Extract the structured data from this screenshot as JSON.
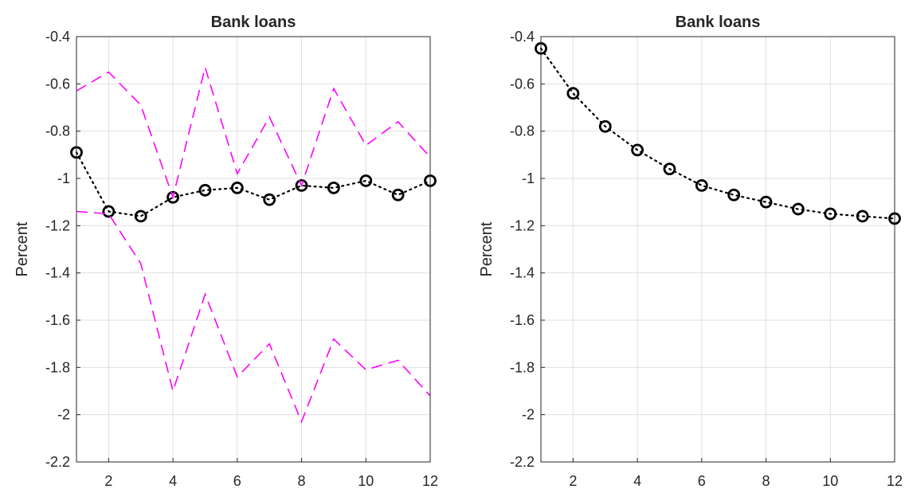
{
  "chart_data": [
    {
      "type": "line",
      "title": "Bank loans",
      "xlabel": "",
      "ylabel": "Percent",
      "xlim": [
        1,
        12
      ],
      "ylim": [
        -2.2,
        -0.4
      ],
      "xticks": [
        2,
        4,
        6,
        8,
        10,
        12
      ],
      "yticks": [
        -2.2,
        -2,
        -1.8,
        -1.6,
        -1.4,
        -1.2,
        -1,
        -0.8,
        -0.6,
        -0.4
      ],
      "grid": true,
      "x": [
        1,
        2,
        3,
        4,
        5,
        6,
        7,
        8,
        9,
        10,
        11,
        12
      ],
      "series": [
        {
          "role": "estimate",
          "style": "dotted-circles",
          "color": "#000000",
          "values": [
            -0.89,
            -1.14,
            -1.16,
            -1.08,
            -1.05,
            -1.04,
            -1.09,
            -1.03,
            -1.04,
            -1.01,
            -1.07,
            -1.01
          ]
        },
        {
          "role": "upper-band",
          "style": "dashed",
          "color": "#ff00ff",
          "values": [
            -0.63,
            -0.55,
            -0.69,
            -1.08,
            -0.53,
            -0.98,
            -0.74,
            -1.03,
            -0.62,
            -0.86,
            -0.76,
            -0.91
          ]
        },
        {
          "role": "lower-band",
          "style": "dashed",
          "color": "#ff00ff",
          "values": [
            -1.14,
            -1.15,
            -1.36,
            -1.9,
            -1.49,
            -1.84,
            -1.7,
            -2.03,
            -1.68,
            -1.81,
            -1.77,
            -1.92
          ]
        }
      ]
    },
    {
      "type": "line",
      "title": "Bank loans",
      "xlabel": "",
      "ylabel": "Percent",
      "xlim": [
        1,
        12
      ],
      "ylim": [
        -2.2,
        -0.4
      ],
      "xticks": [
        2,
        4,
        6,
        8,
        10,
        12
      ],
      "yticks": [
        -2.2,
        -2,
        -1.8,
        -1.6,
        -1.4,
        -1.2,
        -1,
        -0.8,
        -0.6,
        -0.4
      ],
      "grid": true,
      "x": [
        1,
        2,
        3,
        4,
        5,
        6,
        7,
        8,
        9,
        10,
        11,
        12
      ],
      "series": [
        {
          "role": "estimate",
          "style": "dotted-circles",
          "color": "#000000",
          "values": [
            -0.45,
            -0.64,
            -0.78,
            -0.88,
            -0.96,
            -1.03,
            -1.07,
            -1.1,
            -1.13,
            -1.15,
            -1.16,
            -1.17
          ]
        }
      ]
    }
  ]
}
